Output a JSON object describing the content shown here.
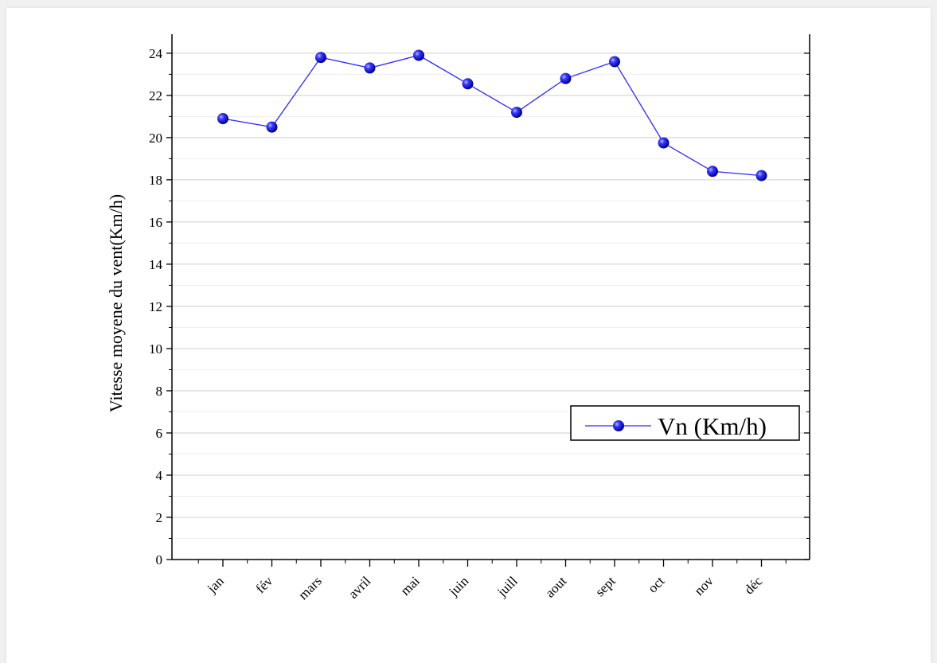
{
  "chart_data": {
    "type": "line",
    "categories": [
      "jan",
      "fév",
      "mars",
      "avril",
      "mai",
      "juin",
      "juill",
      "aout",
      "sept",
      "oct",
      "nov",
      "déc"
    ],
    "series": [
      {
        "name": "Vn (Km/h)",
        "values": [
          20.9,
          20.5,
          23.8,
          23.3,
          23.9,
          22.55,
          21.2,
          22.8,
          23.6,
          19.75,
          18.4,
          18.2
        ],
        "color": "#2a2aff"
      }
    ],
    "xlabel": "",
    "ylabel": "Vitesse moyene du vent(Km/h)",
    "ylim": [
      0,
      24.9
    ],
    "yticks": [
      "0",
      "2",
      "4",
      "6",
      "8",
      "10",
      "12",
      "14",
      "16",
      "18",
      "20",
      "22",
      "24"
    ],
    "grid": true,
    "legend_position": "lower-right",
    "colors": {
      "series": "#2a2aff",
      "marker": "#1a1ad8",
      "grid": "#d9d9d9",
      "axis": "#000000"
    }
  }
}
